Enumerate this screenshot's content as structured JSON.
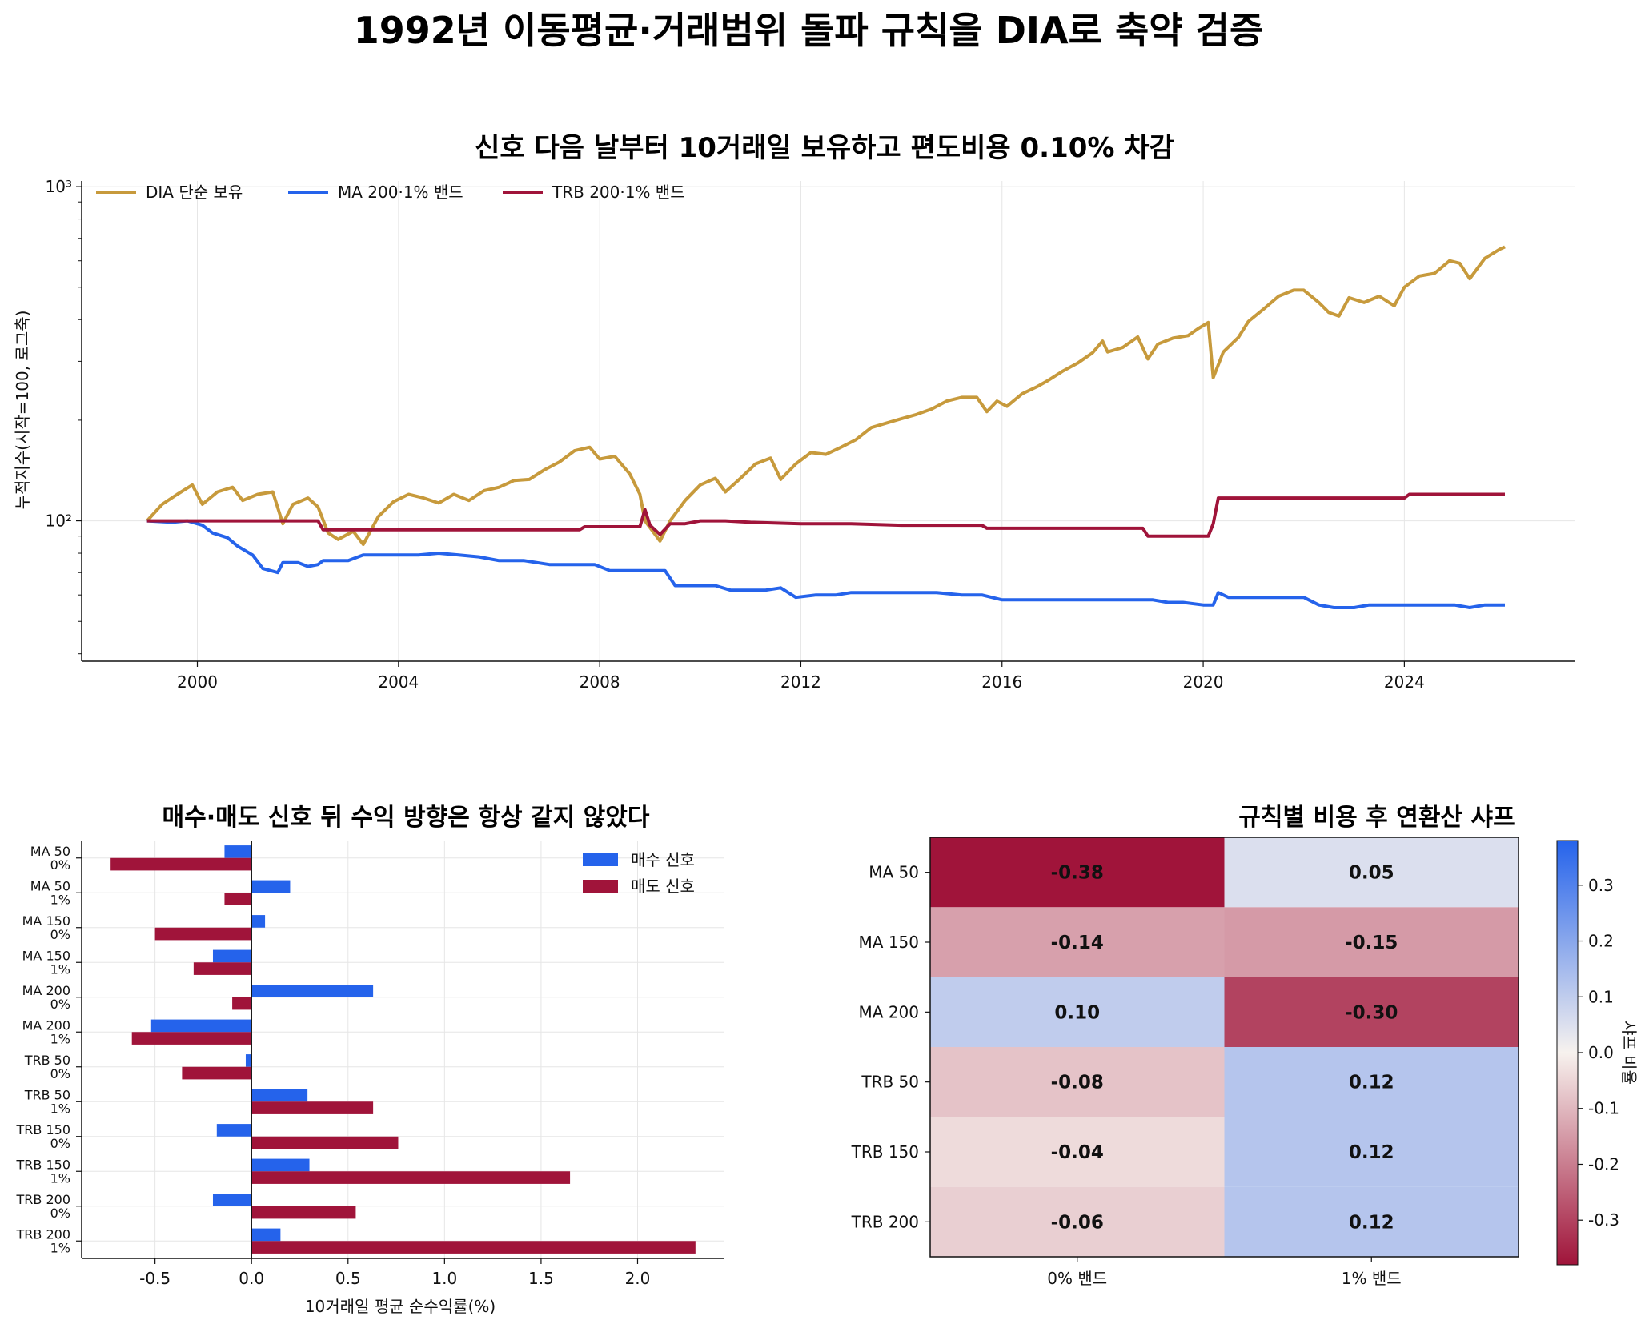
{
  "figure": {
    "suptitle": "1992년 이동평균·거래범위 돌파 규칙을 DIA로 축약 검증"
  },
  "colors": {
    "gold": "#c79a3c",
    "blue": "#2563eb",
    "crimson": "#a0143a",
    "grid": "#e6e6e6"
  },
  "chart_data": [
    {
      "type": "line",
      "title": "신호 다음 날부터 10거래일 보유하고 편도비용 0.10% 차감",
      "ylabel": "누적지수(시작=100, 로그축)",
      "xlabel": "",
      "yscale": "log",
      "xlim": [
        1997.7,
        2027.4
      ],
      "ylim": [
        38,
        1040
      ],
      "x_ticks": [
        2000,
        2004,
        2008,
        2012,
        2016,
        2020,
        2024
      ],
      "y_ticks": [
        {
          "value": 100,
          "label": "10²"
        },
        {
          "value": 1000,
          "label": "10³"
        }
      ],
      "grid": true,
      "legend_position": "top-left, horizontal",
      "series": [
        {
          "name": "DIA 단순 보유",
          "color": "#c79a3c",
          "points": [
            [
              1999.0,
              100
            ],
            [
              1999.3,
              112
            ],
            [
              1999.6,
              120
            ],
            [
              1999.9,
              128
            ],
            [
              2000.1,
              112
            ],
            [
              2000.4,
              122
            ],
            [
              2000.7,
              126
            ],
            [
              2000.9,
              115
            ],
            [
              2001.2,
              120
            ],
            [
              2001.5,
              122
            ],
            [
              2001.7,
              98
            ],
            [
              2001.9,
              112
            ],
            [
              2002.2,
              117
            ],
            [
              2002.4,
              110
            ],
            [
              2002.6,
              92
            ],
            [
              2002.8,
              88
            ],
            [
              2003.1,
              93
            ],
            [
              2003.3,
              85
            ],
            [
              2003.6,
              103
            ],
            [
              2003.9,
              114
            ],
            [
              2004.2,
              120
            ],
            [
              2004.5,
              117
            ],
            [
              2004.8,
              113
            ],
            [
              2005.1,
              120
            ],
            [
              2005.4,
              115
            ],
            [
              2005.7,
              123
            ],
            [
              2006.0,
              126
            ],
            [
              2006.3,
              132
            ],
            [
              2006.6,
              133
            ],
            [
              2006.9,
              142
            ],
            [
              2007.2,
              150
            ],
            [
              2007.5,
              162
            ],
            [
              2007.8,
              166
            ],
            [
              2008.0,
              153
            ],
            [
              2008.3,
              156
            ],
            [
              2008.6,
              138
            ],
            [
              2008.8,
              120
            ],
            [
              2008.9,
              100
            ],
            [
              2009.2,
              87
            ],
            [
              2009.4,
              100
            ],
            [
              2009.7,
              115
            ],
            [
              2010.0,
              128
            ],
            [
              2010.3,
              134
            ],
            [
              2010.5,
              122
            ],
            [
              2010.8,
              134
            ],
            [
              2011.1,
              148
            ],
            [
              2011.4,
              154
            ],
            [
              2011.6,
              133
            ],
            [
              2011.9,
              148
            ],
            [
              2012.2,
              160
            ],
            [
              2012.5,
              158
            ],
            [
              2012.8,
              166
            ],
            [
              2013.1,
              175
            ],
            [
              2013.4,
              190
            ],
            [
              2013.7,
              196
            ],
            [
              2014.0,
              202
            ],
            [
              2014.3,
              208
            ],
            [
              2014.6,
              216
            ],
            [
              2014.9,
              228
            ],
            [
              2015.2,
              234
            ],
            [
              2015.5,
              234
            ],
            [
              2015.7,
              212
            ],
            [
              2015.9,
              228
            ],
            [
              2016.1,
              220
            ],
            [
              2016.4,
              240
            ],
            [
              2016.7,
              252
            ],
            [
              2016.9,
              262
            ],
            [
              2017.2,
              280
            ],
            [
              2017.5,
              296
            ],
            [
              2017.8,
              318
            ],
            [
              2018.0,
              345
            ],
            [
              2018.1,
              320
            ],
            [
              2018.4,
              330
            ],
            [
              2018.7,
              355
            ],
            [
              2018.9,
              305
            ],
            [
              2019.1,
              338
            ],
            [
              2019.4,
              352
            ],
            [
              2019.7,
              358
            ],
            [
              2019.9,
              376
            ],
            [
              2020.1,
              392
            ],
            [
              2020.2,
              268
            ],
            [
              2020.4,
              320
            ],
            [
              2020.7,
              354
            ],
            [
              2020.9,
              395
            ],
            [
              2021.2,
              430
            ],
            [
              2021.5,
              470
            ],
            [
              2021.8,
              490
            ],
            [
              2022.0,
              490
            ],
            [
              2022.3,
              450
            ],
            [
              2022.5,
              420
            ],
            [
              2022.7,
              410
            ],
            [
              2022.9,
              465
            ],
            [
              2023.2,
              450
            ],
            [
              2023.5,
              470
            ],
            [
              2023.8,
              440
            ],
            [
              2024.0,
              500
            ],
            [
              2024.3,
              540
            ],
            [
              2024.6,
              550
            ],
            [
              2024.9,
              600
            ],
            [
              2025.1,
              590
            ],
            [
              2025.3,
              530
            ],
            [
              2025.6,
              610
            ],
            [
              2025.9,
              650
            ],
            [
              2026.0,
              660
            ]
          ]
        },
        {
          "name": "MA 200·1% 밴드",
          "color": "#2563eb",
          "points": [
            [
              1999.0,
              100
            ],
            [
              1999.5,
              99
            ],
            [
              1999.8,
              100
            ],
            [
              2000.1,
              97
            ],
            [
              2000.3,
              92
            ],
            [
              2000.6,
              89
            ],
            [
              2000.8,
              84
            ],
            [
              2001.1,
              79
            ],
            [
              2001.3,
              72
            ],
            [
              2001.6,
              70
            ],
            [
              2001.7,
              75
            ],
            [
              2002.0,
              75
            ],
            [
              2002.2,
              73
            ],
            [
              2002.4,
              74
            ],
            [
              2002.5,
              76
            ],
            [
              2003.0,
              76
            ],
            [
              2003.3,
              79
            ],
            [
              2003.6,
              79
            ],
            [
              2004.0,
              79
            ],
            [
              2004.4,
              79
            ],
            [
              2004.8,
              80
            ],
            [
              2005.2,
              79
            ],
            [
              2005.6,
              78
            ],
            [
              2006.0,
              76
            ],
            [
              2006.5,
              76
            ],
            [
              2007.0,
              74
            ],
            [
              2007.5,
              74
            ],
            [
              2007.9,
              74
            ],
            [
              2008.2,
              71
            ],
            [
              2008.6,
              71
            ],
            [
              2009.0,
              71
            ],
            [
              2009.3,
              71
            ],
            [
              2009.5,
              64
            ],
            [
              2010.0,
              64
            ],
            [
              2010.3,
              64
            ],
            [
              2010.6,
              62
            ],
            [
              2011.0,
              62
            ],
            [
              2011.3,
              62
            ],
            [
              2011.6,
              63
            ],
            [
              2011.9,
              59
            ],
            [
              2012.3,
              60
            ],
            [
              2012.7,
              60
            ],
            [
              2013.0,
              61
            ],
            [
              2013.6,
              61
            ],
            [
              2014.0,
              61
            ],
            [
              2014.7,
              61
            ],
            [
              2015.2,
              60
            ],
            [
              2015.6,
              60
            ],
            [
              2016.0,
              58
            ],
            [
              2016.5,
              58
            ],
            [
              2017.0,
              58
            ],
            [
              2017.5,
              58
            ],
            [
              2018.0,
              58
            ],
            [
              2018.5,
              58
            ],
            [
              2019.0,
              58
            ],
            [
              2019.3,
              57
            ],
            [
              2019.6,
              57
            ],
            [
              2020.0,
              56
            ],
            [
              2020.2,
              56
            ],
            [
              2020.3,
              61
            ],
            [
              2020.5,
              59
            ],
            [
              2021.0,
              59
            ],
            [
              2021.5,
              59
            ],
            [
              2022.0,
              59
            ],
            [
              2022.3,
              56
            ],
            [
              2022.6,
              55
            ],
            [
              2023.0,
              55
            ],
            [
              2023.3,
              56
            ],
            [
              2023.6,
              56
            ],
            [
              2024.0,
              56
            ],
            [
              2024.5,
              56
            ],
            [
              2025.0,
              56
            ],
            [
              2025.3,
              55
            ],
            [
              2025.6,
              56
            ],
            [
              2026.0,
              56
            ]
          ]
        },
        {
          "name": "TRB 200·1% 밴드",
          "color": "#a0143a",
          "points": [
            [
              1999.0,
              100
            ],
            [
              1999.5,
              100
            ],
            [
              2000.0,
              100
            ],
            [
              2000.5,
              100
            ],
            [
              2001.0,
              100
            ],
            [
              2001.5,
              100
            ],
            [
              2002.0,
              100
            ],
            [
              2002.4,
              100
            ],
            [
              2002.5,
              94
            ],
            [
              2003.0,
              94
            ],
            [
              2004.0,
              94
            ],
            [
              2005.0,
              94
            ],
            [
              2006.0,
              94
            ],
            [
              2007.0,
              94
            ],
            [
              2007.6,
              94
            ],
            [
              2007.7,
              96
            ],
            [
              2008.0,
              96
            ],
            [
              2008.8,
              96
            ],
            [
              2008.9,
              108
            ],
            [
              2009.0,
              97
            ],
            [
              2009.2,
              91
            ],
            [
              2009.4,
              98
            ],
            [
              2009.7,
              98
            ],
            [
              2010.0,
              100
            ],
            [
              2010.5,
              100
            ],
            [
              2011.0,
              99
            ],
            [
              2012.0,
              98
            ],
            [
              2013.0,
              98
            ],
            [
              2014.0,
              97
            ],
            [
              2015.0,
              97
            ],
            [
              2015.6,
              97
            ],
            [
              2015.7,
              95
            ],
            [
              2016.0,
              95
            ],
            [
              2017.0,
              95
            ],
            [
              2018.0,
              95
            ],
            [
              2018.8,
              95
            ],
            [
              2018.9,
              90
            ],
            [
              2019.5,
              90
            ],
            [
              2020.1,
              90
            ],
            [
              2020.2,
              98
            ],
            [
              2020.3,
              117
            ],
            [
              2021.0,
              117
            ],
            [
              2022.0,
              117
            ],
            [
              2023.0,
              117
            ],
            [
              2024.0,
              117
            ],
            [
              2024.1,
              120
            ],
            [
              2025.0,
              120
            ],
            [
              2026.0,
              120
            ]
          ]
        }
      ]
    },
    {
      "type": "bar",
      "orientation": "horizontal",
      "title": "매수·매도 신호 뒤 수익 방향은 항상 같지 않았다",
      "xlabel": "10거래일 평균 순수익률(%)",
      "ylabel": "",
      "xlim": [
        -0.88,
        2.45
      ],
      "x_ticks": [
        -0.5,
        0.0,
        0.5,
        1.0,
        1.5,
        2.0
      ],
      "x_tick_labels": [
        "-0.5",
        "0.0",
        "0.5",
        "1.0",
        "1.5",
        "2.0"
      ],
      "grid": true,
      "legend_position": "top-right",
      "categories": [
        "MA 50\n0%",
        "MA 50\n1%",
        "MA 150\n0%",
        "MA 150\n1%",
        "MA 200\n0%",
        "MA 200\n1%",
        "TRB 50\n0%",
        "TRB 50\n1%",
        "TRB 150\n0%",
        "TRB 150\n1%",
        "TRB 200\n0%",
        "TRB 200\n1%"
      ],
      "series": [
        {
          "name": "매수 신호",
          "color": "#2563eb",
          "values": [
            -0.14,
            0.2,
            0.07,
            -0.2,
            0.63,
            -0.52,
            -0.03,
            0.29,
            -0.18,
            0.3,
            -0.2,
            0.15
          ]
        },
        {
          "name": "매도 신호",
          "color": "#a0143a",
          "values": [
            -0.73,
            -0.14,
            -0.5,
            -0.3,
            -0.1,
            -0.62,
            -0.36,
            0.63,
            0.76,
            1.65,
            0.54,
            2.3
          ]
        }
      ]
    },
    {
      "type": "heatmap",
      "title": "규칙별 비용 후 연환산 샤프",
      "xlabel": "",
      "ylabel": "",
      "rows": [
        "MA 50",
        "MA 150",
        "MA 200",
        "TRB 50",
        "TRB 150",
        "TRB 200"
      ],
      "columns": [
        "0% 밴드",
        "1% 밴드"
      ],
      "values": [
        [
          -0.38,
          0.05
        ],
        [
          -0.14,
          -0.15
        ],
        [
          0.1,
          -0.3
        ],
        [
          -0.08,
          0.12
        ],
        [
          -0.04,
          0.12
        ],
        [
          -0.06,
          0.12
        ]
      ],
      "value_labels": [
        [
          "-0.38",
          "0.05"
        ],
        [
          "-0.14",
          "-0.15"
        ],
        [
          "0.10",
          "-0.30"
        ],
        [
          "-0.08",
          "0.12"
        ],
        [
          "-0.04",
          "0.12"
        ],
        [
          "-0.06",
          "0.12"
        ]
      ],
      "colormap": "crimson-white-blue",
      "vmin": -0.38,
      "vmax": 0.38,
      "colorbar_label": "샤프 비율",
      "colorbar_ticks": [
        0.3,
        0.2,
        0.1,
        0.0,
        -0.1,
        -0.2,
        -0.3
      ],
      "colorbar_tick_labels": [
        "0.3",
        "0.2",
        "0.1",
        "0.0",
        "-0.1",
        "-0.2",
        "-0.3"
      ]
    }
  ]
}
